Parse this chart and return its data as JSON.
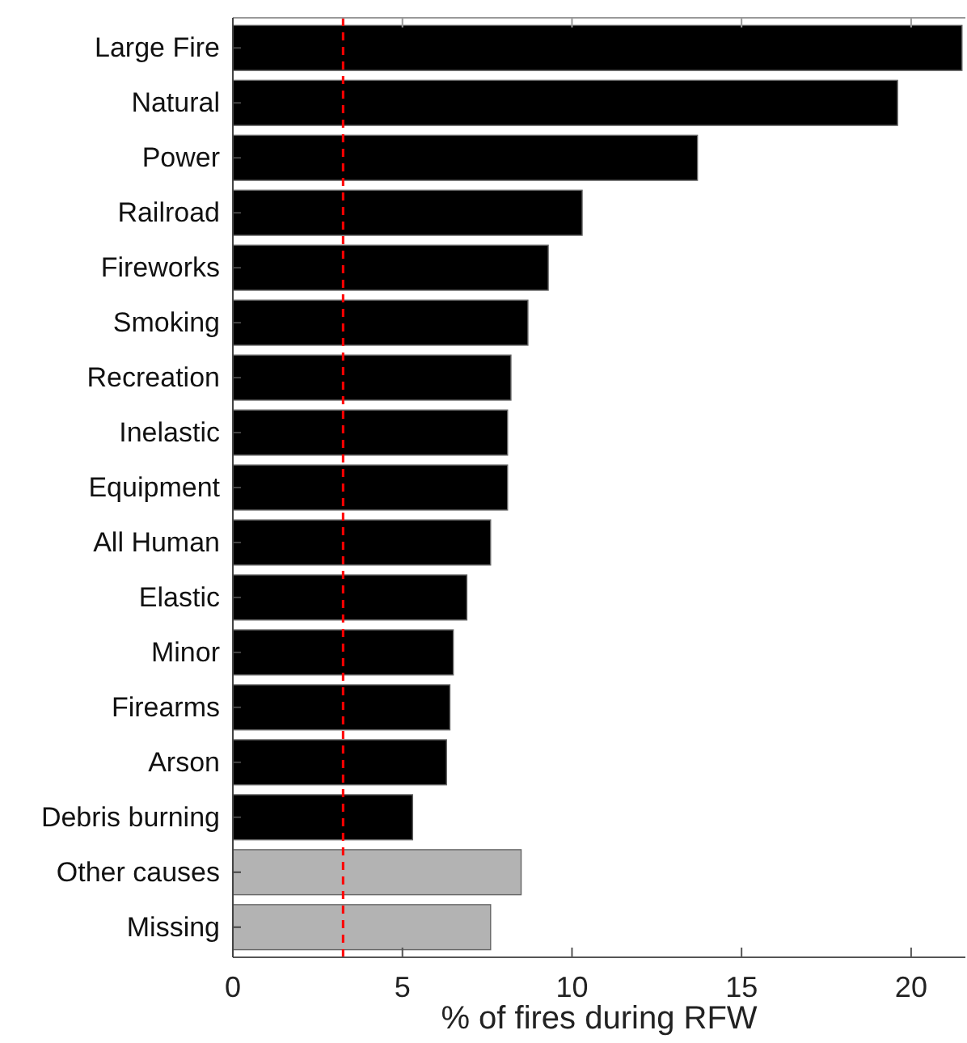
{
  "chart_data": {
    "type": "bar",
    "orientation": "horizontal",
    "xlabel": "% of fires during RFW",
    "categories": [
      "Large Fire",
      "Natural",
      "Power",
      "Railroad",
      "Fireworks",
      "Smoking",
      "Recreation",
      "Inelastic",
      "Equipment",
      "All Human",
      "Elastic",
      "Minor",
      "Firearms",
      "Arson",
      "Debris burning",
      "Other causes",
      "Missing"
    ],
    "values": [
      21.5,
      19.6,
      13.7,
      10.3,
      9.3,
      8.7,
      8.2,
      8.1,
      8.1,
      7.6,
      6.9,
      6.5,
      6.4,
      6.3,
      5.3,
      8.5,
      7.6
    ],
    "colors": [
      "#000000",
      "#000000",
      "#000000",
      "#000000",
      "#000000",
      "#000000",
      "#000000",
      "#000000",
      "#000000",
      "#000000",
      "#000000",
      "#000000",
      "#000000",
      "#000000",
      "#000000",
      "#b3b3b3",
      "#b3b3b3"
    ],
    "xlim": [
      0,
      21.6
    ],
    "xticks": [
      0,
      5,
      10,
      15,
      20
    ],
    "ref_lines": [
      {
        "axis": "x",
        "value": 3.25,
        "color": "#ff0000",
        "line_style": "dashed"
      }
    ]
  }
}
